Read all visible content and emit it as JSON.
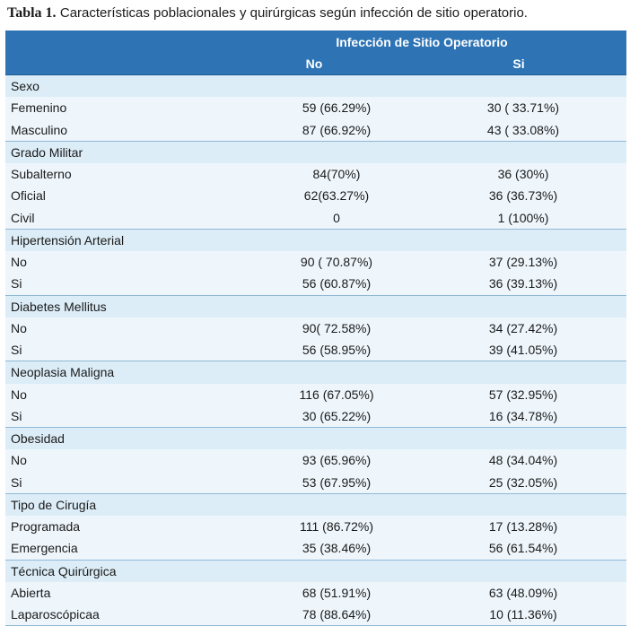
{
  "caption": {
    "label": "Tabla 1.",
    "text": "Características poblacionales y quirúrgicas según infección de sitio operatorio."
  },
  "header": {
    "group_title": "Infección de Sitio Operatorio",
    "col_no": "No",
    "col_si": "Si"
  },
  "groups": [
    {
      "title": "Sexo",
      "rows": [
        {
          "label": "Femenino",
          "no": "59 (66.29%)",
          "si": "30 ( 33.71%)"
        },
        {
          "label": "Masculino",
          "no": "87 (66.92%)",
          "si": "43 ( 33.08%)"
        }
      ]
    },
    {
      "title": "Grado Militar",
      "rows": [
        {
          "label": "Subalterno",
          "no": "84(70%)",
          "si": "36 (30%)"
        },
        {
          "label": "Oficial",
          "no": "62(63.27%)",
          "si": "36 (36.73%)"
        },
        {
          "label": "Civil",
          "no": "0",
          "si": "1 (100%)"
        }
      ]
    },
    {
      "title": "Hipertensión Arterial",
      "rows": [
        {
          "label": "No",
          "no": "90 ( 70.87%)",
          "si": "37 (29.13%)"
        },
        {
          "label": "Si",
          "no": "56 (60.87%)",
          "si": "36 (39.13%)"
        }
      ]
    },
    {
      "title": "Diabetes Mellitus",
      "rows": [
        {
          "label": "No",
          "no": "90( 72.58%)",
          "si": "34 (27.42%)"
        },
        {
          "label": "Si",
          "no": "56 (58.95%)",
          "si": "39 (41.05%)"
        }
      ]
    },
    {
      "title": "Neoplasia Maligna",
      "rows": [
        {
          "label": "No",
          "no": "116 (67.05%)",
          "si": "57 (32.95%)"
        },
        {
          "label": "Si",
          "no": "30 (65.22%)",
          "si": "16 (34.78%)"
        }
      ]
    },
    {
      "title": "Obesidad",
      "rows": [
        {
          "label": "No",
          "no": "93 (65.96%)",
          "si": "48 (34.04%)"
        },
        {
          "label": "Si",
          "no": "53 (67.95%)",
          "si": "25 (32.05%)"
        }
      ]
    },
    {
      "title": "Tipo de Cirugía",
      "rows": [
        {
          "label": "Programada",
          "no": "111 (86.72%)",
          "si": "17 (13.28%)"
        },
        {
          "label": "Emergencia",
          "no": "35  (38.46%)",
          "si": "56 (61.54%)"
        }
      ]
    },
    {
      "title": "Técnica Quirúrgica",
      "rows": [
        {
          "label": "Abierta",
          "no": "68 (51.91%)",
          "si": "63 (48.09%)"
        },
        {
          "label": "Laparoscópicaa",
          "no": "78 (88.64%)",
          "si": "10 (11.36%)"
        }
      ]
    }
  ]
}
